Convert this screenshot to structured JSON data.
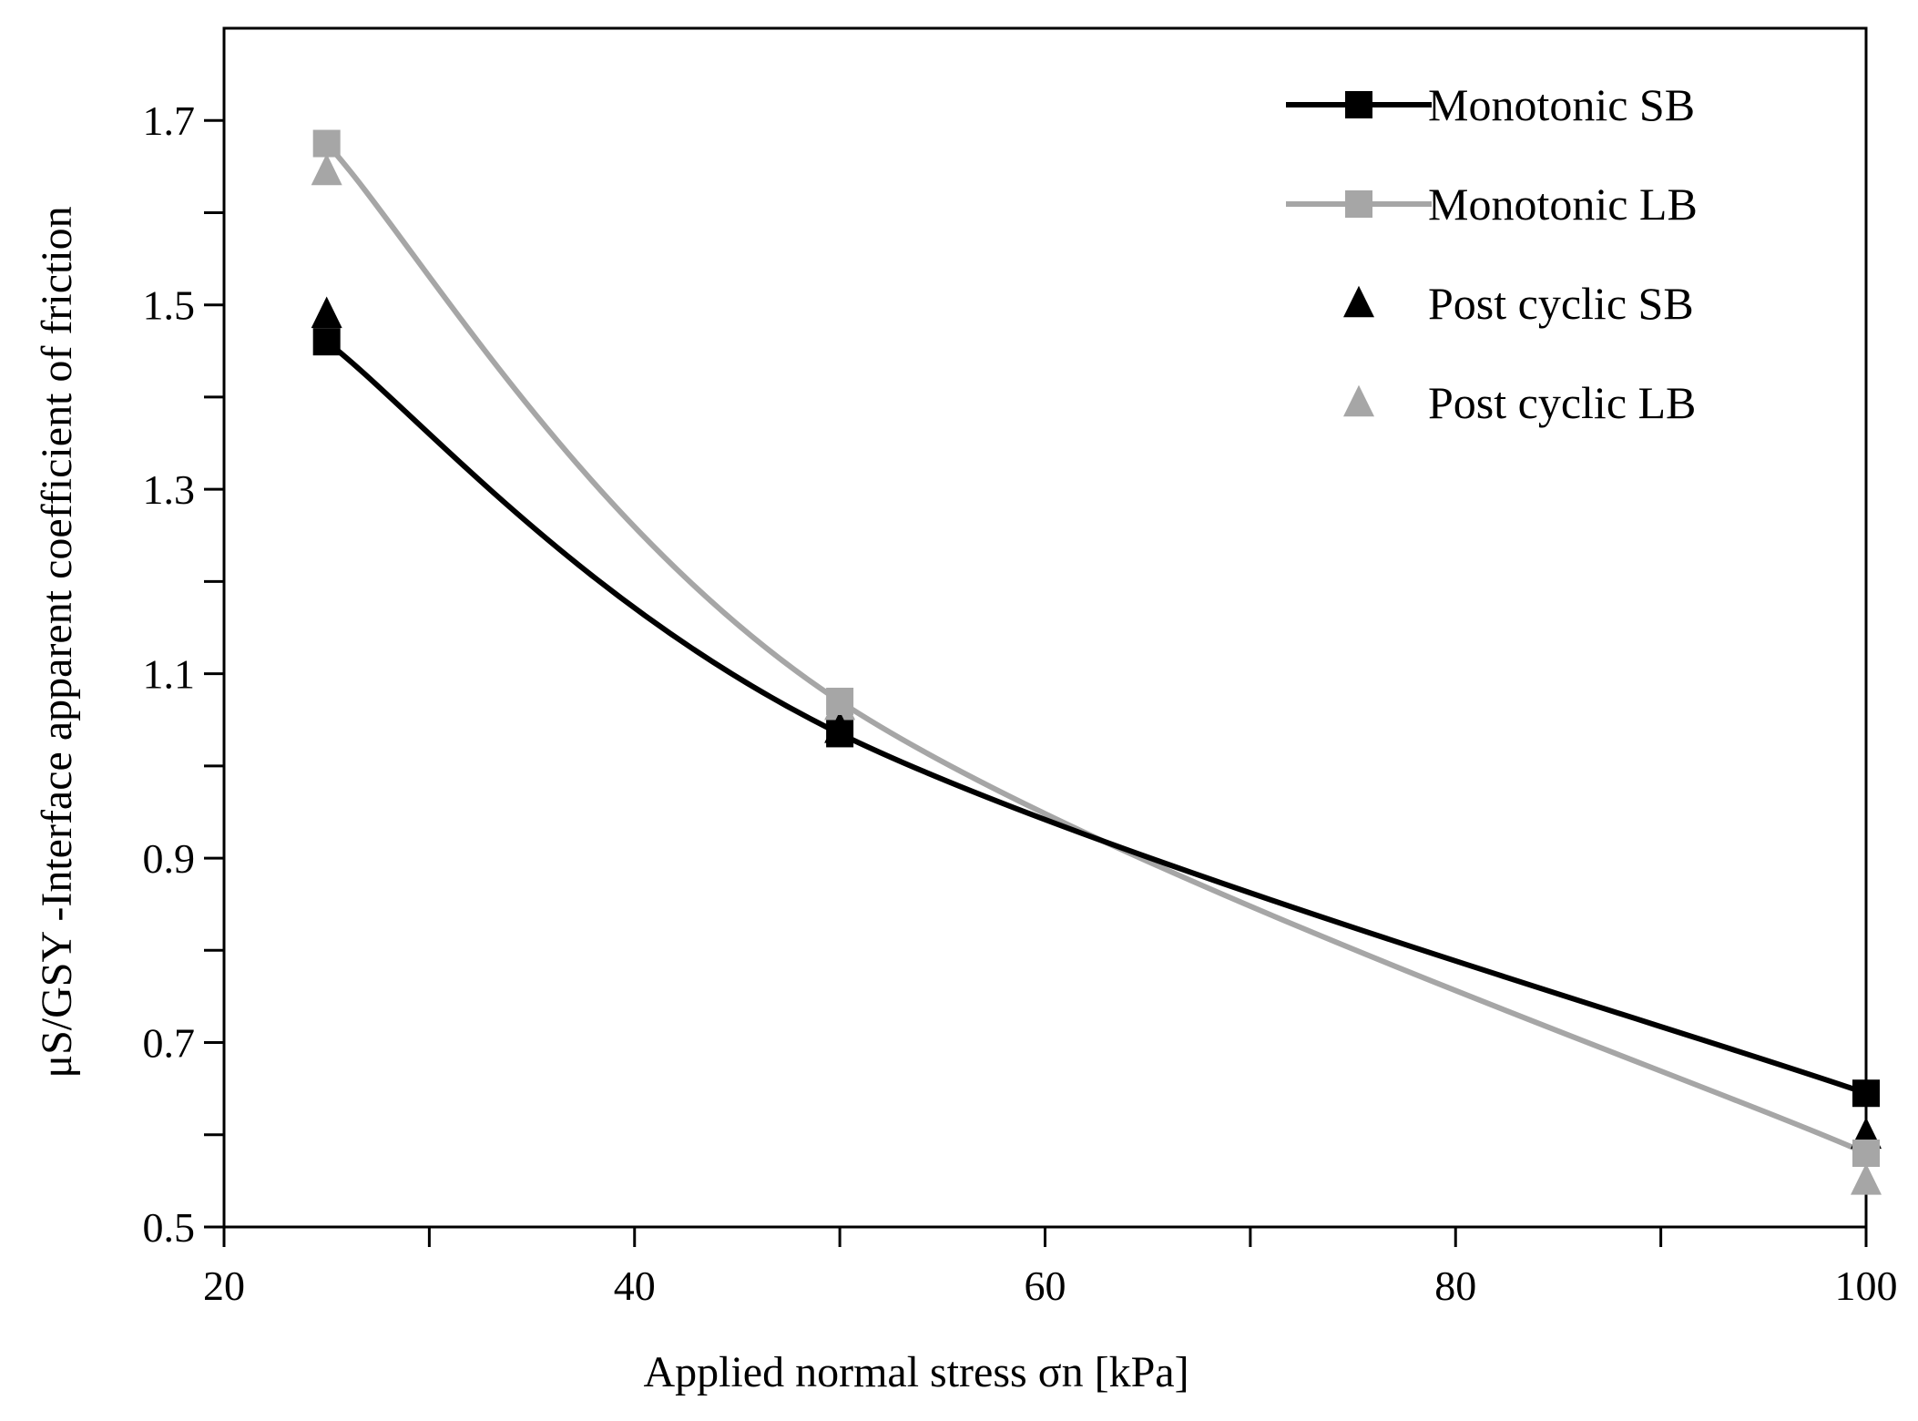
{
  "chart_data": {
    "type": "line",
    "title": "",
    "xlabel": "Applied normal stress σn [kPa]",
    "ylabel": "μS/GSY -Interface apparent coefficient of friction",
    "xlim": [
      20,
      100
    ],
    "ylim": [
      0.5,
      1.8
    ],
    "x_ticks": [
      20,
      40,
      60,
      80,
      100
    ],
    "x_tick_labels": [
      "20",
      "40",
      "60",
      "80",
      "100"
    ],
    "y_ticks": [
      0.5,
      0.7,
      0.9,
      1.1,
      1.3,
      1.5,
      1.7
    ],
    "y_tick_labels": [
      "0.5",
      "0.7",
      "0.9",
      "1.1",
      "1.3",
      "1.5",
      "1.7"
    ],
    "grid": false,
    "legend_position": "top-right",
    "series": [
      {
        "name": "Monotonic SB",
        "marker": "square",
        "line": true,
        "smooth": true,
        "color": "#000000",
        "x": [
          25,
          50,
          100
        ],
        "y": [
          1.46,
          1.035,
          0.645
        ]
      },
      {
        "name": "Monotonic LB",
        "marker": "square",
        "line": true,
        "smooth": true,
        "color": "#a6a6a6",
        "x": [
          25,
          50,
          100
        ],
        "y": [
          1.675,
          1.07,
          0.58
        ]
      },
      {
        "name": "Post cyclic SB",
        "marker": "triangle",
        "line": false,
        "color": "#000000",
        "x": [
          25,
          50,
          100
        ],
        "y": [
          1.49,
          1.04,
          0.6
        ]
      },
      {
        "name": "Post cyclic LB",
        "marker": "triangle",
        "line": false,
        "color": "#a6a6a6",
        "x": [
          25,
          50,
          100
        ],
        "y": [
          1.645,
          1.065,
          0.55
        ]
      }
    ]
  }
}
